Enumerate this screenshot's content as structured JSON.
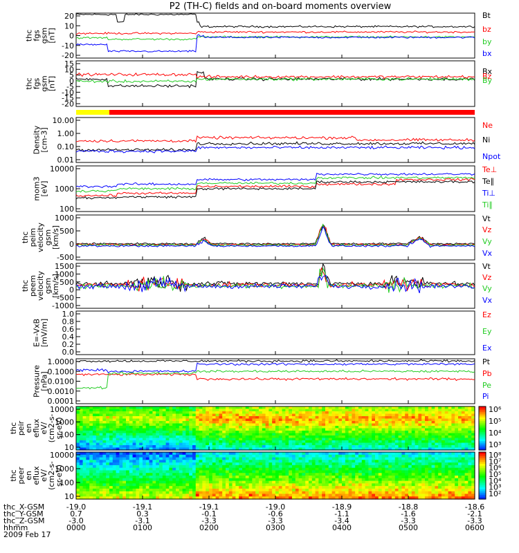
{
  "title": "P2 (TH-C) fields and on-board moments overview",
  "colors": {
    "black": "#000000",
    "red": "#ff0000",
    "green": "#22cc22",
    "blue": "#0000ff",
    "yellow": "#ffff00"
  },
  "chart_data": [
    {
      "id": "p1",
      "type": "line",
      "ylabel": [
        "thc",
        "fgs",
        "gsm",
        "[nT]"
      ],
      "yticks": [
        "20",
        "10",
        "0",
        "-10",
        "-20"
      ],
      "ylim": [
        -20,
        20
      ],
      "series": [
        {
          "name": "Bt",
          "color": "#000000"
        },
        {
          "name": "bz",
          "color": "#ff0000"
        },
        {
          "name": "by",
          "color": "#22cc22"
        },
        {
          "name": "bx",
          "color": "#0000ff"
        }
      ]
    },
    {
      "id": "p2",
      "type": "line",
      "ylabel": [
        "thc",
        "fgs",
        "gsm",
        "[nT]"
      ],
      "yticks": [
        "15",
        "10",
        "5",
        "0",
        "-5",
        "-10",
        "-15",
        "-20"
      ],
      "ylim": [
        -20,
        18
      ],
      "series": [
        {
          "name": "Bx",
          "color": "#000000"
        },
        {
          "name": "Bz",
          "color": "#ff0000"
        },
        {
          "name": "By",
          "color": "#22cc22"
        }
      ]
    },
    {
      "id": "p3",
      "type": "line",
      "scale": "log",
      "ylabel": [
        "Density",
        "[cm-3]"
      ],
      "yticks": [
        "10.00",
        "1.00",
        "0.10",
        "0.01"
      ],
      "series": [
        {
          "name": "Ne",
          "color": "#ff0000"
        },
        {
          "name": "Ni",
          "color": "#000000"
        },
        {
          "name": "Npot",
          "color": "#0000ff"
        }
      ]
    },
    {
      "id": "p4",
      "type": "line",
      "scale": "log",
      "ylabel": [
        "mom3",
        "[eV]"
      ],
      "yticks": [
        "10000",
        "1000",
        "100"
      ],
      "series": [
        {
          "name": "Te⊥",
          "color": "#ff0000"
        },
        {
          "name": "Te∥",
          "color": "#000000"
        },
        {
          "name": "Ti⊥",
          "color": "#0000ff"
        },
        {
          "name": "Ti∥",
          "color": "#22cc22"
        }
      ]
    },
    {
      "id": "p5",
      "type": "line",
      "ylabel": [
        "thc",
        "peim",
        "velocity",
        "gsm",
        "[km/s]"
      ],
      "yticks": [
        "1000",
        "500",
        "0",
        "-500"
      ],
      "ylim": [
        -500,
        1000
      ],
      "series": [
        {
          "name": "Vt",
          "color": "#000000"
        },
        {
          "name": "Vz",
          "color": "#ff0000"
        },
        {
          "name": "Vy",
          "color": "#22cc22"
        },
        {
          "name": "Vx",
          "color": "#0000ff"
        }
      ]
    },
    {
      "id": "p6",
      "type": "line",
      "ylabel": [
        "thc",
        "peem",
        "velocity",
        "gsm",
        "[km/s]"
      ],
      "yticks": [
        "1500",
        "1000",
        "500",
        "0",
        "-500",
        "-1000"
      ],
      "ylim": [
        -1500,
        1500
      ],
      "series": [
        {
          "name": "Vt",
          "color": "#000000"
        },
        {
          "name": "Vz",
          "color": "#ff0000"
        },
        {
          "name": "Vy",
          "color": "#22cc22"
        },
        {
          "name": "Vx",
          "color": "#0000ff"
        }
      ]
    },
    {
      "id": "p7",
      "type": "line",
      "ylabel": [
        "E=-VxB",
        "[mV/m]"
      ],
      "yticks": [
        "1.0",
        "0.8",
        "0.6",
        "0.4",
        "0.2",
        "0.0"
      ],
      "ylim": [
        0,
        1
      ],
      "series": [
        {
          "name": "Ez",
          "color": "#ff0000"
        },
        {
          "name": "Ey",
          "color": "#22cc22"
        },
        {
          "name": "Ex",
          "color": "#0000ff"
        }
      ]
    },
    {
      "id": "p8",
      "type": "line",
      "scale": "log",
      "ylabel": [
        "Pressure",
        "[nPa]"
      ],
      "yticks": [
        "1.0000",
        "0.1000",
        "0.0100",
        "0.0010",
        "0.0001"
      ],
      "series": [
        {
          "name": "Pt",
          "color": "#000000"
        },
        {
          "name": "Pb",
          "color": "#ff0000"
        },
        {
          "name": "Pe",
          "color": "#22cc22"
        },
        {
          "name": "Pi",
          "color": "#0000ff"
        }
      ]
    },
    {
      "id": "p9",
      "type": "heatmap",
      "ylabel": [
        "thc",
        "peir",
        "en",
        "eflux",
        "eV/",
        "(cm2-s-",
        "sr-eV)"
      ],
      "yticks": [
        "10000",
        "1000",
        "100",
        "10"
      ],
      "colorbar": [
        "10⁶",
        "10⁵",
        "10⁴",
        "10³"
      ]
    },
    {
      "id": "p10",
      "type": "heatmap",
      "ylabel": [
        "thc",
        "peer",
        "en",
        "eflux",
        "eV/",
        "(cm2-s-",
        "sr-eV)"
      ],
      "yticks": [
        "10000",
        "1000",
        "100",
        "10"
      ],
      "colorbar": [
        "10⁸",
        "10⁷",
        "10⁶",
        "10⁵",
        "10⁴",
        "10³",
        "10²"
      ]
    }
  ],
  "xaxis": {
    "rows": [
      {
        "label": "thc_X-GSM",
        "values": [
          "-19.0",
          "-19.1",
          "-19.1",
          "-19.0",
          "-18.9",
          "-18.8",
          "-18.6"
        ]
      },
      {
        "label": "thc_Y-GSM",
        "values": [
          "0.7",
          "0.3",
          "-0.1",
          "-0.6",
          "-1.1",
          "-1.6",
          "-2.1"
        ]
      },
      {
        "label": "thc_Z-GSM",
        "values": [
          "-3.0",
          "-3.1",
          "-3.3",
          "-3.3",
          "-3.4",
          "-3.3",
          "-3.3"
        ]
      },
      {
        "label": "hhmm",
        "values": [
          "0000",
          "0100",
          "0200",
          "0300",
          "0400",
          "0500",
          "0600"
        ]
      }
    ],
    "date": "2009 Feb 17"
  }
}
